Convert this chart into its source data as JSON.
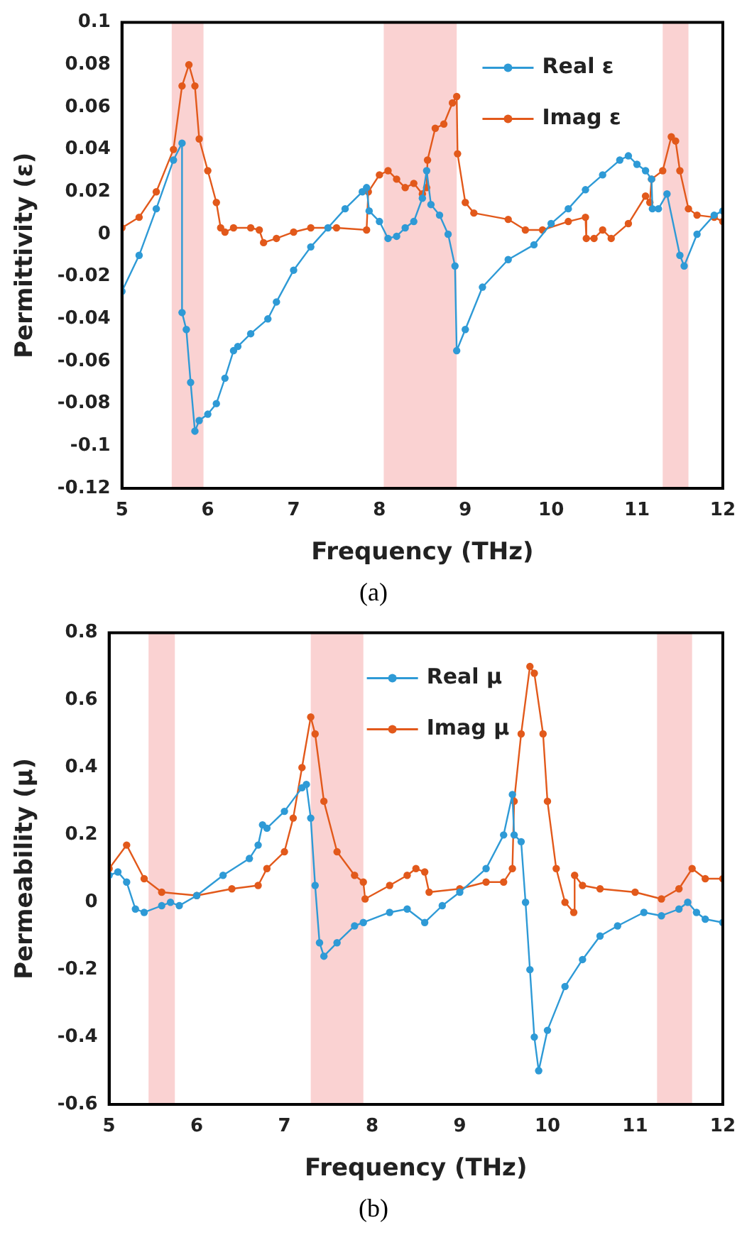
{
  "chart_data": [
    {
      "type": "line",
      "xlabel": "Frequency (THz)",
      "ylabel": "Permittivity (ε)",
      "annotations": [
        "(a)"
      ],
      "xlim": [
        5,
        12
      ],
      "xticks": [
        5,
        6,
        7,
        8,
        9,
        10,
        11,
        12
      ],
      "ylim": [
        -0.12,
        0.1
      ],
      "yticks": [
        -0.12,
        -0.1,
        -0.08,
        -0.06,
        -0.04,
        -0.02,
        0,
        0.02,
        0.04,
        0.06,
        0.08,
        0.1
      ],
      "grid": false,
      "legend": "top right",
      "marker": "circle",
      "line_style": "solid",
      "bands": [
        {
          "axis": "x",
          "from": 5.58,
          "to": 5.95,
          "color": "#fad2d2"
        },
        {
          "axis": "x",
          "from": 8.05,
          "to": 8.9,
          "color": "#fad2d2"
        },
        {
          "axis": "x",
          "from": 11.3,
          "to": 11.6,
          "color": "#fad2d2"
        }
      ],
      "series": [
        {
          "name": "Real ε",
          "color": "#2e9ad6",
          "x": [
            5,
            5.2,
            5.4,
            5.6,
            5.7,
            5.7,
            5.75,
            5.8,
            5.85,
            5.9,
            6,
            6.1,
            6.2,
            6.3,
            6.35,
            6.5,
            6.7,
            6.8,
            7,
            7.2,
            7.4,
            7.6,
            7.8,
            7.85,
            7.88,
            8,
            8.1,
            8.2,
            8.3,
            8.4,
            8.5,
            8.55,
            8.6,
            8.7,
            8.8,
            8.88,
            8.9,
            9,
            9.2,
            9.5,
            9.8,
            10,
            10.2,
            10.4,
            10.6,
            10.8,
            10.9,
            11,
            11.1,
            11.17,
            11.18,
            11.25,
            11.35,
            11.5,
            11.55,
            11.7,
            11.9,
            12
          ],
          "values": [
            -0.027,
            -0.01,
            0.012,
            0.035,
            0.043,
            -0.037,
            -0.045,
            -0.07,
            -0.093,
            -0.088,
            -0.085,
            -0.08,
            -0.068,
            -0.055,
            -0.053,
            -0.047,
            -0.04,
            -0.032,
            -0.017,
            -0.006,
            0.003,
            0.012,
            0.02,
            0.022,
            0.011,
            0.006,
            -0.002,
            -0.001,
            0.003,
            0.006,
            0.017,
            0.03,
            0.014,
            0.009,
            0,
            -0.015,
            -0.055,
            -0.045,
            -0.025,
            -0.012,
            -0.005,
            0.005,
            0.012,
            0.021,
            0.028,
            0.035,
            0.037,
            0.033,
            0.03,
            0.026,
            0.012,
            0.012,
            0.019,
            -0.01,
            -0.015,
            0,
            0.009,
            0.011
          ]
        },
        {
          "name": "Imag ε",
          "color": "#e2591b",
          "x": [
            5,
            5.2,
            5.4,
            5.6,
            5.7,
            5.78,
            5.85,
            5.9,
            6,
            6.1,
            6.15,
            6.2,
            6.3,
            6.5,
            6.6,
            6.65,
            6.8,
            7,
            7.2,
            7.5,
            7.85,
            7.87,
            8,
            8.1,
            8.2,
            8.3,
            8.4,
            8.5,
            8.55,
            8.56,
            8.65,
            8.75,
            8.85,
            8.9,
            8.91,
            9,
            9.1,
            9.5,
            9.7,
            9.9,
            10.2,
            10.4,
            10.41,
            10.5,
            10.6,
            10.7,
            10.9,
            11.1,
            11.15,
            11.17,
            11.3,
            11.4,
            11.45,
            11.5,
            11.6,
            11.7,
            11.9,
            12
          ],
          "values": [
            0.003,
            0.008,
            0.02,
            0.04,
            0.07,
            0.08,
            0.07,
            0.045,
            0.03,
            0.015,
            0.003,
            0.001,
            0.003,
            0.003,
            0.002,
            -0.004,
            -0.002,
            0.001,
            0.003,
            0.003,
            0.002,
            0.02,
            0.028,
            0.03,
            0.026,
            0.022,
            0.024,
            0.019,
            0.022,
            0.035,
            0.05,
            0.052,
            0.062,
            0.065,
            0.038,
            0.015,
            0.01,
            0.007,
            0.002,
            0.002,
            0.006,
            0.008,
            -0.002,
            -0.002,
            0.002,
            -0.002,
            0.005,
            0.018,
            0.015,
            0.026,
            0.03,
            0.046,
            0.044,
            0.03,
            0.012,
            0.009,
            0.008,
            0.006
          ]
        }
      ]
    },
    {
      "type": "line",
      "xlabel": "Frequency (THz)",
      "ylabel": "Permeability (μ)",
      "annotations": [
        "(b)"
      ],
      "xlim": [
        5,
        12
      ],
      "xticks": [
        5,
        6,
        7,
        8,
        9,
        10,
        11,
        12
      ],
      "ylim": [
        -0.6,
        0.8
      ],
      "yticks": [
        -0.6,
        -0.4,
        -0.2,
        0,
        0.2,
        0.4,
        0.6,
        0.8
      ],
      "grid": false,
      "legend": "top",
      "marker": "circle",
      "line_style": "solid",
      "bands": [
        {
          "axis": "x",
          "from": 5.45,
          "to": 5.75,
          "color": "#fad2d2"
        },
        {
          "axis": "x",
          "from": 7.3,
          "to": 7.9,
          "color": "#fad2d2"
        },
        {
          "axis": "x",
          "from": 11.25,
          "to": 11.65,
          "color": "#fad2d2"
        }
      ],
      "series": [
        {
          "name": "Real μ",
          "color": "#2e9ad6",
          "x": [
            5,
            5.1,
            5.2,
            5.3,
            5.4,
            5.6,
            5.7,
            5.8,
            6,
            6.3,
            6.6,
            6.7,
            6.75,
            6.8,
            7,
            7.2,
            7.25,
            7.3,
            7.35,
            7.4,
            7.45,
            7.6,
            7.8,
            7.9,
            8.2,
            8.4,
            8.6,
            8.8,
            9,
            9.3,
            9.5,
            9.6,
            9.62,
            9.7,
            9.75,
            9.8,
            9.85,
            9.9,
            10,
            10.2,
            10.4,
            10.6,
            10.8,
            11.1,
            11.3,
            11.5,
            11.6,
            11.7,
            11.8,
            12
          ],
          "values": [
            0.08,
            0.09,
            0.06,
            -0.02,
            -0.03,
            -0.01,
            0,
            -0.01,
            0.02,
            0.08,
            0.13,
            0.17,
            0.23,
            0.22,
            0.27,
            0.34,
            0.35,
            0.25,
            0.05,
            -0.12,
            -0.16,
            -0.12,
            -0.07,
            -0.06,
            -0.03,
            -0.02,
            -0.06,
            -0.01,
            0.03,
            0.1,
            0.2,
            0.32,
            0.2,
            0.18,
            0,
            -0.2,
            -0.4,
            -0.5,
            -0.38,
            -0.25,
            -0.17,
            -0.1,
            -0.07,
            -0.03,
            -0.04,
            -0.02,
            0,
            -0.03,
            -0.05,
            -0.06
          ]
        },
        {
          "name": "Imag μ",
          "color": "#e2591b",
          "x": [
            5,
            5.2,
            5.4,
            5.6,
            6,
            6.4,
            6.7,
            6.8,
            7,
            7.1,
            7.2,
            7.3,
            7.35,
            7.45,
            7.6,
            7.8,
            7.9,
            7.92,
            8.2,
            8.4,
            8.5,
            8.6,
            8.65,
            9,
            9.3,
            9.5,
            9.6,
            9.62,
            9.7,
            9.8,
            9.85,
            9.95,
            10,
            10.1,
            10.2,
            10.3,
            10.31,
            10.4,
            10.6,
            11,
            11.3,
            11.5,
            11.65,
            11.8,
            12
          ],
          "values": [
            0.1,
            0.17,
            0.07,
            0.03,
            0.02,
            0.04,
            0.05,
            0.1,
            0.15,
            0.25,
            0.4,
            0.55,
            0.5,
            0.3,
            0.15,
            0.08,
            0.06,
            0.01,
            0.05,
            0.08,
            0.1,
            0.09,
            0.03,
            0.04,
            0.06,
            0.06,
            0.1,
            0.3,
            0.5,
            0.7,
            0.68,
            0.5,
            0.3,
            0.1,
            0,
            -0.03,
            0.08,
            0.05,
            0.04,
            0.03,
            0.01,
            0.04,
            0.1,
            0.07,
            0.07
          ]
        }
      ]
    }
  ]
}
